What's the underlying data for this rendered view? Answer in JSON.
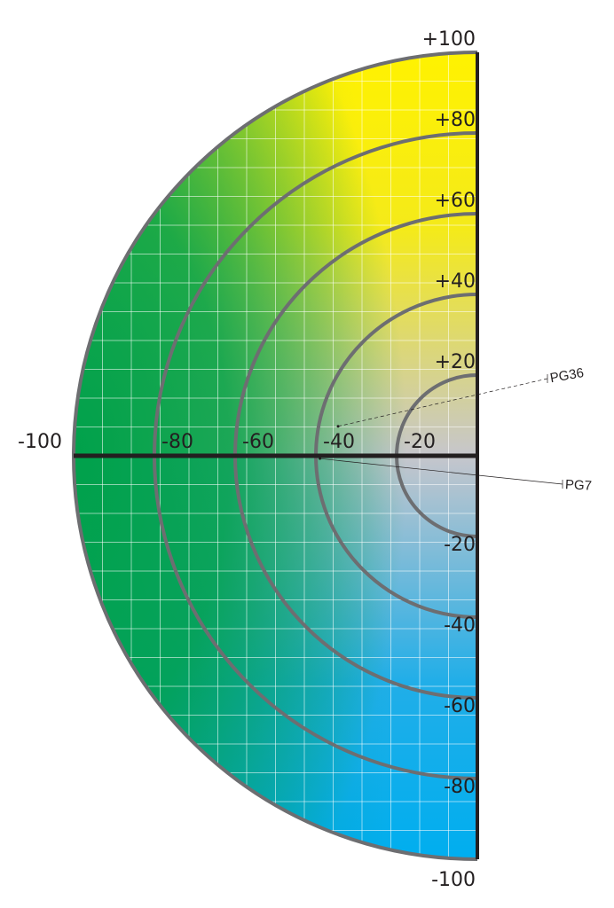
{
  "diagram": {
    "type": "half-disk color space plot",
    "colors": {
      "top": "#fff200",
      "left": "#00a14b",
      "bottom": "#00aeef",
      "center": "#c6c6cc",
      "rings": "#6d6e71",
      "axis": "#231f20"
    },
    "rings": [
      20,
      40,
      60,
      80,
      100
    ],
    "vertical_labels": [
      {
        "value": 100,
        "text": "+100"
      },
      {
        "value": 80,
        "text": "+80"
      },
      {
        "value": 60,
        "text": "+60"
      },
      {
        "value": 40,
        "text": "+40"
      },
      {
        "value": 20,
        "text": "+20"
      },
      {
        "value": -20,
        "text": "-20"
      },
      {
        "value": -40,
        "text": "-40"
      },
      {
        "value": -60,
        "text": "-60"
      },
      {
        "value": -80,
        "text": "-80"
      },
      {
        "value": -100,
        "text": "-100"
      }
    ],
    "horizontal_labels": [
      {
        "value": -100,
        "text": "-100"
      },
      {
        "value": -80,
        "text": "-80"
      },
      {
        "value": -60,
        "text": "-60"
      },
      {
        "value": -40,
        "text": "-40"
      },
      {
        "value": -20,
        "text": "-20"
      }
    ],
    "points": [
      {
        "label": "PG36",
        "x": -34.5,
        "y": 7.3,
        "line": "dashed"
      },
      {
        "label": "PG7",
        "x": -39,
        "y": -0.7,
        "line": "solid"
      }
    ]
  }
}
